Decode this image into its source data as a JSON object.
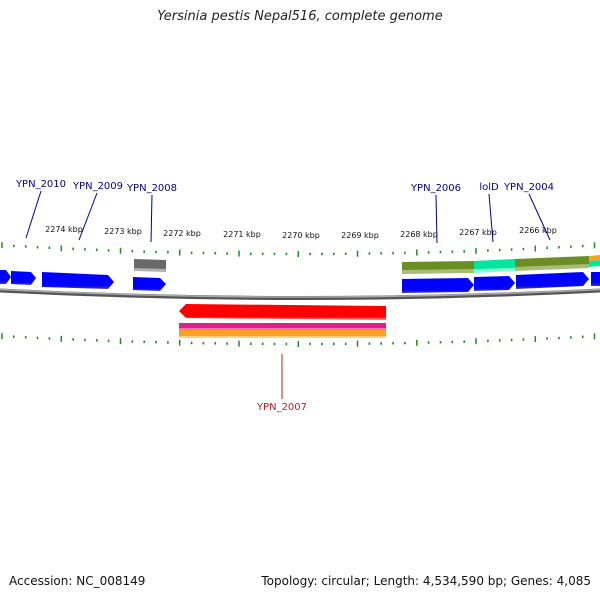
{
  "title": "Yersinia pestis Nepal516, complete genome",
  "footer": {
    "accession": "Accession: NC_008149",
    "summary": "Topology: circular; Length: 4,534,590 bp; Genes: 4,085"
  },
  "ruler_labels": [
    "2274 kbp",
    "2273 kbp",
    "2272 kbp",
    "2271 kbp",
    "2270 kbp",
    "2269 kbp",
    "2268 kbp",
    "2267 kbp",
    "2266 kbp"
  ],
  "gene_labels": [
    {
      "text": "YPN_2010",
      "strand": "forward"
    },
    {
      "text": "YPN_2009",
      "strand": "forward"
    },
    {
      "text": "YPN_2008",
      "strand": "forward"
    },
    {
      "text": "YPN_2006",
      "strand": "forward"
    },
    {
      "text": "lolD",
      "strand": "forward"
    },
    {
      "text": "YPN_2004",
      "strand": "forward"
    },
    {
      "text": "YPN_2007",
      "strand": "reverse"
    }
  ],
  "colors": {
    "forward_gene": "#0000ff",
    "forward_label": "#00008b",
    "reverse_gene": "#ff0000",
    "reverse_label": "#b22222",
    "tick": "#228b22",
    "backbone": "#808080",
    "cog_olive": "#6b8e23",
    "cog_aqua": "#00e5a0",
    "cog_gray": "#696969",
    "cog_magenta": "#e0208a",
    "cog_orange": "#ffa020"
  }
}
